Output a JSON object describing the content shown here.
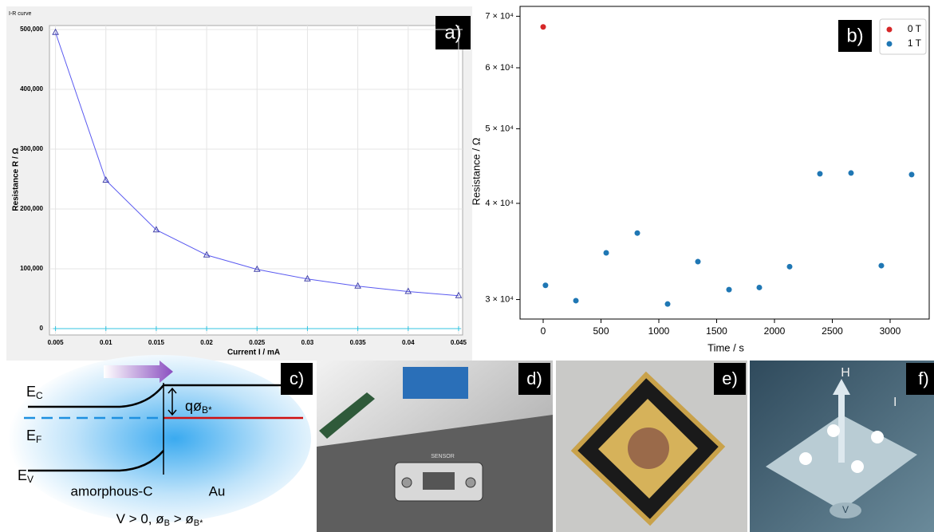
{
  "chart_data": [
    {
      "type": "line",
      "title": "I-R curve",
      "panel_label": "a)",
      "x_label": "Current I / mA",
      "y_label": "Resistance R / Ω",
      "x": [
        0.005,
        0.01,
        0.015,
        0.02,
        0.025,
        0.03,
        0.035,
        0.04,
        0.045
      ],
      "series": [
        {
          "color": "#5a5af0",
          "values": [
            495000,
            248000,
            165000,
            123000,
            99000,
            83000,
            71000,
            62000,
            55000
          ]
        },
        {
          "color": "#33c4e0",
          "values": [
            0,
            0,
            0,
            0,
            0,
            0,
            0,
            0,
            0
          ]
        }
      ],
      "xlim": [
        0.0044,
        0.0454
      ],
      "xticks": [
        0.005,
        0.01,
        0.015,
        0.02,
        0.025,
        0.03,
        0.035,
        0.04,
        0.045
      ],
      "ylim": [
        -10667,
        506667
      ],
      "yticks": [
        0,
        {
          "value": 100000,
          "label": "100,000"
        },
        {
          "value": 200000,
          "label": "200,000"
        },
        {
          "value": 300000,
          "label": "300,000"
        },
        {
          "value": 400000,
          "label": "400,000"
        },
        {
          "value": 500000,
          "label": "500,000"
        }
      ],
      "grid": true
    },
    {
      "type": "scatter",
      "panel_label": "b)",
      "x_label": "Time / s",
      "y_label": "Resistance / Ω",
      "log_y": true,
      "legend": "upper right",
      "series": [
        {
          "name": "0 T",
          "color": "#d62728",
          "x": [
            0
          ],
          "values": [
            67800
          ]
        },
        {
          "name": "1 T",
          "color": "#1f77b4",
          "x": [
            20,
            283,
            545,
            814,
            1076,
            1338,
            1607,
            1869,
            2131,
            2393,
            2662,
            2924,
            3186
          ],
          "values": [
            31300,
            29900,
            34500,
            36600,
            29600,
            33600,
            30900,
            31100,
            33100,
            43700,
            43800,
            33200,
            43600
          ]
        }
      ],
      "xlim": [
        -200,
        3338
      ],
      "xticks": [
        0,
        500,
        1000,
        1500,
        2000,
        2500,
        3000
      ],
      "ylim": [
        28300,
        72100
      ],
      "yticks": [
        {
          "value": 30000,
          "label": "3 × 10⁴"
        },
        {
          "value": 40000,
          "label": "4 × 10⁴"
        },
        {
          "value": 50000,
          "label": "5 × 10⁴"
        },
        {
          "value": 60000,
          "label": "6 × 10⁴"
        },
        {
          "value": 70000,
          "label": "7 × 10⁴"
        }
      ],
      "grid": false
    }
  ],
  "panels": {
    "c": {
      "label": "c)",
      "ec": {
        "main": "E",
        "sub": "C"
      },
      "ef": {
        "main": "E",
        "sub": "F"
      },
      "ev": {
        "main": "E",
        "sub": "V"
      },
      "barrier": {
        "main": "qø",
        "sub": "B*"
      },
      "left": "amorphous-C",
      "right": "Au",
      "condition": {
        "a": "V > 0, ø",
        "b": "B",
        "c": " > ø",
        "d": "B*"
      }
    },
    "d": {
      "label": "d)",
      "sensor": "SENSOR"
    },
    "e": {
      "label": "e)"
    },
    "f": {
      "label": "f)",
      "h": "H",
      "i": "I",
      "v": "V"
    }
  }
}
